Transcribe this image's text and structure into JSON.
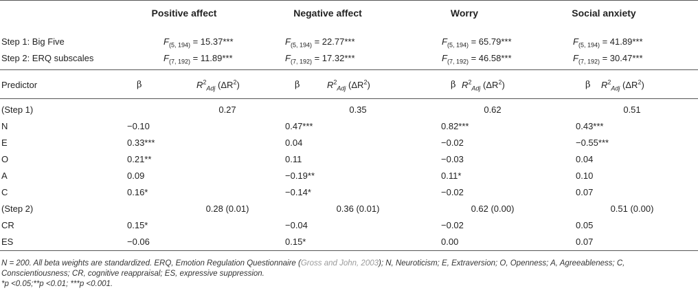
{
  "columns": [
    "Positive affect",
    "Negative affect",
    "Worry",
    "Social anxiety"
  ],
  "f_rows": [
    {
      "label": "Step 1: Big Five",
      "df": "(5, 194)",
      "values": [
        "15.37***",
        "22.77***",
        "65.79***",
        "41.89***"
      ]
    },
    {
      "label": "Step 2: ERQ subscales",
      "df": "(7, 192)",
      "values": [
        "11.89***",
        "17.32***",
        "46.58***",
        "30.47***"
      ]
    }
  ],
  "predictor_header": {
    "label": "Predictor",
    "beta": "β",
    "r2_sub": "Adj",
    "r2_sup": "2",
    "delta": "(ΔR",
    "delta_sup": "2",
    "close": ")"
  },
  "rows": [
    {
      "label": "(Step 1)",
      "r2": [
        "0.27",
        "0.35",
        "0.62",
        "0.51"
      ]
    },
    {
      "label": "N",
      "betas": [
        "−0.10",
        "0.47***",
        "0.82***",
        "0.43***"
      ]
    },
    {
      "label": "E",
      "betas": [
        "0.33***",
        "0.04",
        "−0.02",
        "−0.55***"
      ]
    },
    {
      "label": "O",
      "betas": [
        "0.21**",
        "0.11",
        "−0.03",
        "0.04"
      ]
    },
    {
      "label": "A",
      "betas": [
        "0.09",
        "−0.19**",
        "0.11*",
        "0.10"
      ]
    },
    {
      "label": "C",
      "betas": [
        "0.16*",
        "−0.14*",
        "−0.02",
        "0.07"
      ]
    },
    {
      "label": "(Step 2)",
      "r2": [
        "0.28 (0.01)",
        "0.36 (0.01)",
        "0.62 (0.00)",
        "0.51 (0.00)"
      ]
    },
    {
      "label": "CR",
      "betas": [
        "0.15*",
        "−0.04",
        "−0.02",
        "0.05"
      ]
    },
    {
      "label": "ES",
      "betas": [
        "−0.06",
        "0.15*",
        "0.00",
        "0.07"
      ]
    }
  ],
  "notes": {
    "line1_a": "N = 200. All beta weights are standardized. ERQ, Emotion Regulation Questionnaire (",
    "citation": "Gross and John, 2003",
    "line1_b": "); N, Neuroticism; E, Extraversion; O, Openness; A, Agreeableness; C,",
    "line2": "Conscientiousness; CR, cognitive reappraisal; ES, expressive suppression.",
    "line3": "*p <0.05;**p <0.01; ***p <0.001."
  }
}
